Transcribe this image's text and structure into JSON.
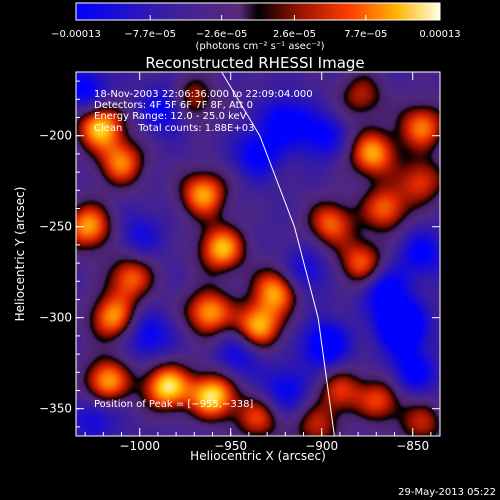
{
  "chart_data": {
    "type": "heatmap",
    "title": "Reconstructed RHESSI Image",
    "xlabel": "Heliocentric X (arcsec)",
    "ylabel": "Heliocentric Y (arcsec)",
    "xlim": [
      -1035,
      -835
    ],
    "ylim": [
      -365,
      -165
    ],
    "x_ticks": [
      -1000,
      -950,
      -900,
      -850
    ],
    "x_tick_labels": [
      "−1000",
      "−950",
      "−900",
      "−850"
    ],
    "y_ticks": [
      -200,
      -250,
      -300,
      -350
    ],
    "y_tick_labels": [
      "−200",
      "−250",
      "−300",
      "−350"
    ],
    "colorbar": {
      "range": [
        -0.00013,
        0.00013
      ],
      "tick_values": [
        -0.00013,
        -7.7e-05,
        -2.6e-05,
        2.6e-05,
        7.7e-05,
        0.00013
      ],
      "tick_labels": [
        "−0.00013",
        "−7.7e−05",
        "−2.6e−05",
        "2.6e−05",
        "7.7e−05",
        "0.00013"
      ],
      "units": "(photons cm⁻² s⁻¹ asec⁻²)"
    },
    "annotations": [
      "18-Nov-2003 22:06:36.000 to 22:09:04.000",
      "Detectors: 4F 5F 6F 7F 8F, Att 0",
      "Energy Range: 12.0 - 25.0 keV",
      "Clean     Total counts: 1.88E+03"
    ],
    "peak_label": "Position of Peak = [−955,−338]",
    "limb_line": [
      [
        -955,
        -165
      ],
      [
        -934,
        -200
      ],
      [
        -915,
        -250
      ],
      [
        -902,
        -300
      ],
      [
        -893,
        -365
      ]
    ],
    "sources": [
      {
        "x": -1022,
        "y": -195,
        "v": 0.95
      },
      {
        "x": -1010,
        "y": -215,
        "v": 0.75
      },
      {
        "x": -1028,
        "y": -250,
        "v": 0.85
      },
      {
        "x": -1005,
        "y": -278,
        "v": 0.7
      },
      {
        "x": -1015,
        "y": -300,
        "v": 0.8
      },
      {
        "x": -1018,
        "y": -335,
        "v": 0.85
      },
      {
        "x": -985,
        "y": -338,
        "v": 1.0
      },
      {
        "x": -960,
        "y": -343,
        "v": 1.0
      },
      {
        "x": -965,
        "y": -232,
        "v": 0.85
      },
      {
        "x": -955,
        "y": -262,
        "v": 0.9
      },
      {
        "x": -962,
        "y": -297,
        "v": 0.85
      },
      {
        "x": -935,
        "y": -305,
        "v": 0.9
      },
      {
        "x": -925,
        "y": -285,
        "v": 0.85
      },
      {
        "x": -972,
        "y": -180,
        "v": 0.6
      },
      {
        "x": -935,
        "y": -355,
        "v": 0.6
      },
      {
        "x": -895,
        "y": -248,
        "v": 0.7
      },
      {
        "x": -878,
        "y": -270,
        "v": 0.7
      },
      {
        "x": -872,
        "y": -210,
        "v": 0.85
      },
      {
        "x": -865,
        "y": -240,
        "v": 0.7
      },
      {
        "x": -878,
        "y": -178,
        "v": 0.5
      },
      {
        "x": -845,
        "y": -195,
        "v": 0.75
      },
      {
        "x": -845,
        "y": -225,
        "v": 0.6
      },
      {
        "x": -868,
        "y": -345,
        "v": 0.6
      },
      {
        "x": -890,
        "y": -340,
        "v": 0.55
      },
      {
        "x": -903,
        "y": -360,
        "v": 0.5
      },
      {
        "x": -845,
        "y": -358,
        "v": 0.5
      },
      {
        "x": -1030,
        "y": -175,
        "v": -0.55
      },
      {
        "x": -985,
        "y": -185,
        "v": -0.6
      },
      {
        "x": -995,
        "y": -310,
        "v": -0.5
      },
      {
        "x": -1025,
        "y": -355,
        "v": -0.4
      },
      {
        "x": -1000,
        "y": -255,
        "v": -0.35
      },
      {
        "x": -935,
        "y": -210,
        "v": -0.55
      },
      {
        "x": -920,
        "y": -192,
        "v": -0.6
      },
      {
        "x": -910,
        "y": -275,
        "v": -0.45
      },
      {
        "x": -898,
        "y": -315,
        "v": -0.7
      },
      {
        "x": -900,
        "y": -200,
        "v": -0.5
      },
      {
        "x": -865,
        "y": -285,
        "v": -0.6
      },
      {
        "x": -856,
        "y": -305,
        "v": -1.0
      },
      {
        "x": -845,
        "y": -265,
        "v": -0.5
      },
      {
        "x": -850,
        "y": -330,
        "v": -0.55
      },
      {
        "x": -920,
        "y": -340,
        "v": -0.5
      },
      {
        "x": -945,
        "y": -320,
        "v": -0.45
      }
    ]
  },
  "footer": {
    "timestamp": "29-May-2013 05:22"
  }
}
